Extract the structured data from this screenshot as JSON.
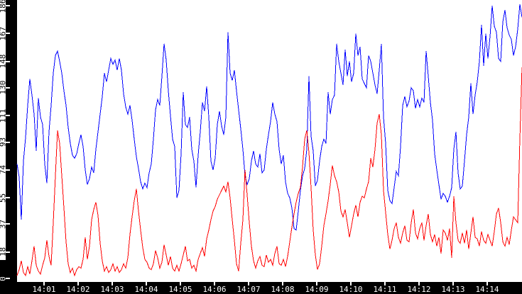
{
  "chart_data": {
    "type": "line",
    "title": "",
    "xlabel": "",
    "ylabel": "",
    "grid": false,
    "legend": "none",
    "x_axis": {
      "tick_labels": [
        "14:01",
        "14:02",
        "14:03",
        "14:04",
        "14:05",
        "14:06",
        "14:07",
        "14:08",
        "14:09",
        "14:10",
        "14:11",
        "14:12",
        "14:13",
        "14:14"
      ],
      "visible_range_start": "14:00:13",
      "visible_range_end": "14:15:01"
    },
    "y_axis": {
      "ticks": [
        0,
        18,
        37,
        55,
        74,
        93,
        111,
        130,
        148,
        167,
        186
      ],
      "min": 0,
      "max": 186
    },
    "colors": {
      "series_blue": "#0000ff",
      "series_red": "#ff0000",
      "axis_band": "#000000",
      "tick_text_on_band": "#ffffff",
      "tick_text_on_white": "#000000",
      "background": "#ffffff"
    },
    "series": [
      {
        "name": "blue",
        "color": "#0000ff",
        "t_start": "14:00:13",
        "t_end": "14:15:01",
        "sample_interval_sec": 3.75,
        "values": [
          78,
          69,
          40,
          80,
          96,
          118,
          136,
          125,
          112,
          87,
          123,
          110,
          105,
          78,
          65,
          100,
          118,
          140,
          152,
          155,
          148,
          140,
          128,
          118,
          103,
          92,
          84,
          82,
          85,
          92,
          98,
          90,
          74,
          64,
          68,
          76,
          72,
          88,
          100,
          112,
          124,
          140,
          134,
          142,
          150,
          146,
          149,
          142,
          150,
          142,
          126,
          117,
          112,
          118,
          108,
          95,
          83,
          75,
          66,
          61,
          65,
          62,
          72,
          78,
          95,
          115,
          122,
          118,
          138,
          160,
          149,
          128,
          111,
          95,
          90,
          55,
          60,
          85,
          127,
          105,
          103,
          110,
          88,
          80,
          62,
          84,
          100,
          120,
          114,
          131,
          110,
          80,
          74,
          82,
          105,
          114,
          104,
          98,
          110,
          168,
          140,
          135,
          142,
          128,
          115,
          102,
          88,
          70,
          64,
          68,
          80,
          87,
          78,
          76,
          85,
          72,
          74,
          88,
          98,
          107,
          120,
          112,
          107,
          88,
          78,
          84,
          66,
          58,
          55,
          48,
          34,
          33,
          46,
          60,
          70,
          75,
          88,
          138,
          97,
          87,
          63,
          67,
          80,
          90,
          95,
          92,
          127,
          112,
          122,
          125,
          160,
          148,
          140,
          132,
          156,
          138,
          148,
          134,
          140,
          167,
          152,
          158,
          136,
          133,
          130,
          152,
          148,
          140,
          132,
          126,
          142,
          160,
          110,
          92,
          60,
          53,
          51,
          62,
          73,
          70,
          90,
          118,
          124,
          117,
          121,
          130,
          128,
          116,
          122,
          117,
          123,
          120,
          155,
          138,
          120,
          108,
          85,
          74,
          64,
          54,
          58,
          56,
          52,
          56,
          62,
          88,
          100,
          72,
          61,
          63,
          80,
          98,
          110,
          133,
          112,
          125,
          134,
          148,
          173,
          145,
          167,
          150,
          165,
          186,
          172,
          168,
          150,
          148,
          175,
          183,
          171,
          166,
          163,
          152,
          158,
          170,
          187,
          178
        ]
      },
      {
        "name": "red",
        "color": "#ff0000",
        "t_start": "14:00:13",
        "t_end": "14:15:01",
        "sample_interval_sec": 3.75,
        "values": [
          2,
          6,
          12,
          4,
          2,
          8,
          3,
          12,
          22,
          9,
          5,
          3,
          9,
          14,
          26,
          15,
          9,
          38,
          70,
          101,
          92,
          70,
          48,
          25,
          10,
          4,
          7,
          2,
          6,
          8,
          7,
          13,
          28,
          13,
          22,
          40,
          47,
          52,
          43,
          24,
          12,
          5,
          8,
          4,
          6,
          10,
          5,
          8,
          4,
          6,
          10,
          7,
          14,
          30,
          42,
          53,
          61,
          46,
          33,
          21,
          13,
          11,
          7,
          6,
          10,
          19,
          14,
          7,
          11,
          23,
          16,
          9,
          15,
          7,
          5,
          9,
          5,
          10,
          16,
          22,
          12,
          13,
          7,
          9,
          5,
          13,
          17,
          21,
          15,
          27,
          33,
          40,
          46,
          49,
          54,
          57,
          60,
          63,
          59,
          66,
          55,
          40,
          26,
          10,
          5,
          24,
          40,
          74,
          57,
          38,
          22,
          12,
          7,
          12,
          15,
          9,
          8,
          16,
          11,
          13,
          9,
          17,
          22,
          10,
          9,
          13,
          8,
          15,
          25,
          35,
          44,
          52,
          58,
          62,
          76,
          95,
          101,
          86,
          62,
          33,
          16,
          6,
          10,
          22,
          36,
          44,
          53,
          64,
          77,
          70,
          66,
          59,
          46,
          42,
          47,
          38,
          28,
          36,
          44,
          50,
          42,
          52,
          56,
          55,
          61,
          66,
          82,
          76,
          88,
          106,
          112,
          98,
          60,
          45,
          30,
          20,
          26,
          34,
          38,
          28,
          24,
          31,
          36,
          26,
          25,
          38,
          47,
          31,
          27,
          34,
          38,
          26,
          36,
          44,
          30,
          25,
          30,
          22,
          28,
          17,
          33,
          31,
          26,
          34,
          14,
          56,
          38,
          26,
          24,
          31,
          24,
          33,
          20,
          31,
          42,
          28,
          27,
          22,
          32,
          26,
          24,
          30,
          26,
          22,
          32,
          44,
          48,
          38,
          25,
          22,
          28,
          23,
          33,
          42,
          40,
          38,
          95,
          144
        ]
      }
    ]
  }
}
